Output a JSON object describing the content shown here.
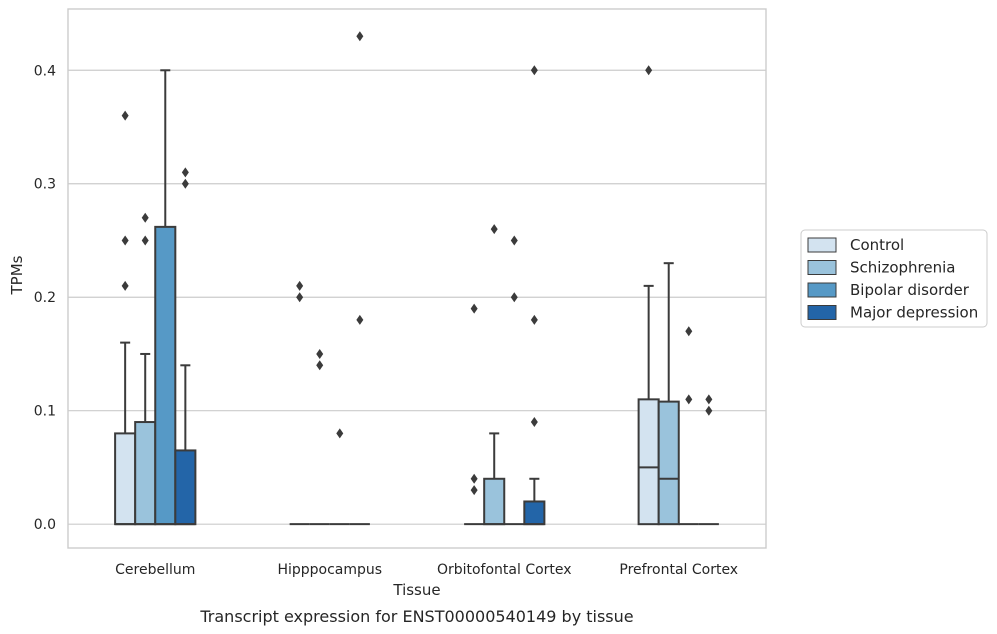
{
  "caption": "Transcript expression for ENST00000540149 by tissue",
  "chart_data": {
    "type": "box",
    "xlabel": "Tissue",
    "ylabel": "TPMs",
    "ylim": [
      -0.021,
      0.454
    ],
    "yticks": [
      0.0,
      0.1,
      0.2,
      0.3,
      0.4
    ],
    "ytick_labels": [
      "0.0",
      "0.1",
      "0.2",
      "0.3",
      "0.4"
    ],
    "grid": "horizontal",
    "legend_position": "right",
    "categories": [
      "Cerebellum",
      "Hipppocampus",
      "Orbitofontal Cortex",
      "Prefrontal Cortex"
    ],
    "series": [
      {
        "name": "Control",
        "color": "#d3e3f0",
        "boxes": [
          {
            "q1": 0.0,
            "median": 0.0,
            "q3": 0.08,
            "whisker_low": 0.0,
            "whisker_high": 0.16,
            "outliers": [
              0.21,
              0.25,
              0.36
            ]
          },
          {
            "q1": 0.0,
            "median": 0.0,
            "q3": 0.0,
            "whisker_low": 0.0,
            "whisker_high": 0.0,
            "outliers": [
              0.2,
              0.21
            ]
          },
          {
            "q1": 0.0,
            "median": 0.0,
            "q3": 0.0,
            "whisker_low": 0.0,
            "whisker_high": 0.0,
            "outliers": [
              0.03,
              0.04,
              0.19
            ]
          },
          {
            "q1": 0.0,
            "median": 0.05,
            "q3": 0.11,
            "whisker_low": 0.0,
            "whisker_high": 0.21,
            "outliers": [
              0.4
            ]
          }
        ]
      },
      {
        "name": "Schizophrenia",
        "color": "#9ac3dc",
        "boxes": [
          {
            "q1": 0.0,
            "median": 0.0,
            "q3": 0.09,
            "whisker_low": 0.0,
            "whisker_high": 0.15,
            "outliers": [
              0.25,
              0.27
            ]
          },
          {
            "q1": 0.0,
            "median": 0.0,
            "q3": 0.0,
            "whisker_low": 0.0,
            "whisker_high": 0.0,
            "outliers": [
              0.14,
              0.15
            ]
          },
          {
            "q1": 0.0,
            "median": 0.0,
            "q3": 0.04,
            "whisker_low": 0.0,
            "whisker_high": 0.08,
            "outliers": [
              0.26
            ]
          },
          {
            "q1": 0.0,
            "median": 0.04,
            "q3": 0.108,
            "whisker_low": 0.0,
            "whisker_high": 0.23,
            "outliers": []
          }
        ]
      },
      {
        "name": "Bipolar disorder",
        "color": "#5699c6",
        "boxes": [
          {
            "q1": 0.0,
            "median": 0.0,
            "q3": 0.262,
            "whisker_low": 0.0,
            "whisker_high": 0.4,
            "outliers": []
          },
          {
            "q1": 0.0,
            "median": 0.0,
            "q3": 0.0,
            "whisker_low": 0.0,
            "whisker_high": 0.0,
            "outliers": [
              0.08
            ]
          },
          {
            "q1": 0.0,
            "median": 0.0,
            "q3": 0.0,
            "whisker_low": 0.0,
            "whisker_high": 0.0,
            "outliers": [
              0.2,
              0.25
            ]
          },
          {
            "q1": 0.0,
            "median": 0.0,
            "q3": 0.0,
            "whisker_low": 0.0,
            "whisker_high": 0.0,
            "outliers": [
              0.11,
              0.17
            ]
          }
        ]
      },
      {
        "name": "Major depression",
        "color": "#2365a8",
        "boxes": [
          {
            "q1": 0.0,
            "median": 0.0,
            "q3": 0.065,
            "whisker_low": 0.0,
            "whisker_high": 0.14,
            "outliers": [
              0.3,
              0.31
            ]
          },
          {
            "q1": 0.0,
            "median": 0.0,
            "q3": 0.0,
            "whisker_low": 0.0,
            "whisker_high": 0.0,
            "outliers": [
              0.18,
              0.43
            ]
          },
          {
            "q1": 0.0,
            "median": 0.0,
            "q3": 0.02,
            "whisker_low": 0.0,
            "whisker_high": 0.04,
            "outliers": [
              0.09,
              0.18,
              0.4
            ]
          },
          {
            "q1": 0.0,
            "median": 0.0,
            "q3": 0.0,
            "whisker_low": 0.0,
            "whisker_high": 0.0,
            "outliers": [
              0.1,
              0.11
            ]
          }
        ]
      }
    ]
  }
}
